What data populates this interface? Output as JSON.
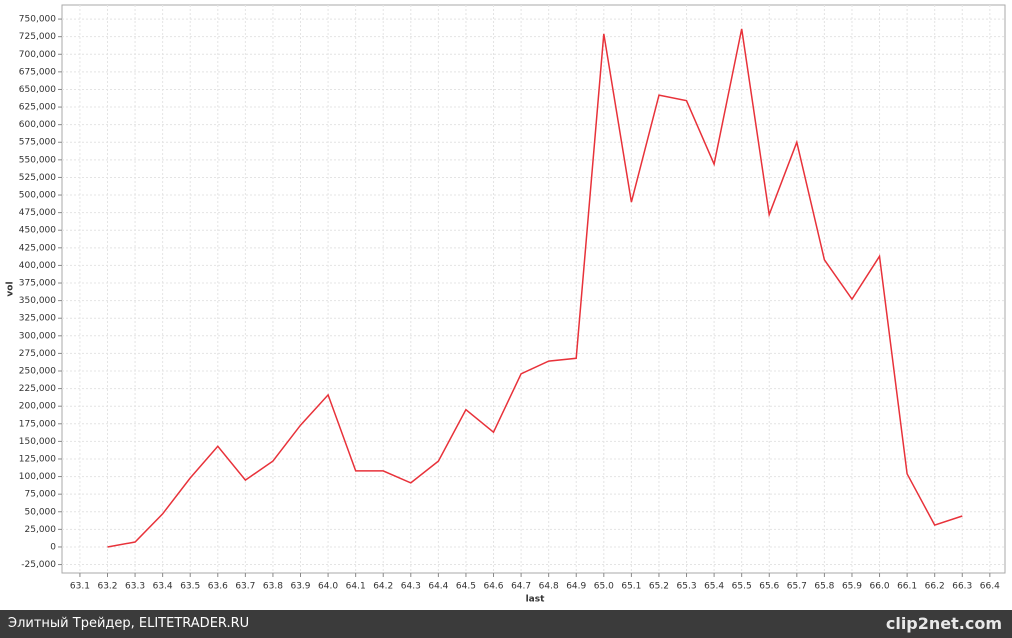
{
  "chart_data": {
    "type": "line",
    "x_label": "last",
    "y_label": "vol",
    "color": "#e8323a",
    "grid": true,
    "x": [
      63.2,
      63.3,
      63.4,
      63.5,
      63.6,
      63.7,
      63.8,
      63.9,
      64.0,
      64.1,
      64.2,
      64.3,
      64.4,
      64.5,
      64.6,
      64.7,
      64.8,
      64.9,
      65.0,
      65.1,
      65.2,
      65.3,
      65.4,
      65.5,
      65.6,
      65.7,
      65.8,
      65.9,
      66.0,
      66.1,
      66.2,
      66.3
    ],
    "values": [
      0,
      7000,
      47000,
      98000,
      143000,
      95000,
      122000,
      173000,
      216000,
      108000,
      108000,
      91000,
      122000,
      195000,
      163000,
      246000,
      264000,
      268000,
      729000,
      490000,
      642000,
      634000,
      544000,
      736000,
      472000,
      575000,
      408000,
      352000,
      413000,
      104000,
      31000,
      44000
    ],
    "xlim": [
      63.035,
      66.455
    ],
    "ylim": [
      -37000,
      770000
    ],
    "xticks": [
      63.1,
      63.2,
      63.3,
      63.4,
      63.5,
      63.6,
      63.7,
      63.8,
      63.9,
      {
        "value": 64,
        "label": "64.0"
      },
      64.1,
      64.2,
      64.3,
      64.4,
      64.5,
      64.6,
      64.7,
      64.8,
      64.9,
      {
        "value": 65,
        "label": "65.0"
      },
      65.1,
      65.2,
      65.3,
      65.4,
      65.5,
      65.6,
      65.7,
      65.8,
      65.9,
      {
        "value": 66,
        "label": "66.0"
      },
      66.1,
      66.2,
      66.3,
      66.4
    ],
    "yticks": [
      {
        "value": -25000,
        "label": "-25,000"
      },
      0,
      {
        "value": 25000,
        "label": "25,000"
      },
      {
        "value": 50000,
        "label": "50,000"
      },
      {
        "value": 75000,
        "label": "75,000"
      },
      {
        "value": 100000,
        "label": "100,000"
      },
      {
        "value": 125000,
        "label": "125,000"
      },
      {
        "value": 150000,
        "label": "150,000"
      },
      {
        "value": 175000,
        "label": "175,000"
      },
      {
        "value": 200000,
        "label": "200,000"
      },
      {
        "value": 225000,
        "label": "225,000"
      },
      {
        "value": 250000,
        "label": "250,000"
      },
      {
        "value": 275000,
        "label": "275,000"
      },
      {
        "value": 300000,
        "label": "300,000"
      },
      {
        "value": 325000,
        "label": "325,000"
      },
      {
        "value": 350000,
        "label": "350,000"
      },
      {
        "value": 375000,
        "label": "375,000"
      },
      {
        "value": 400000,
        "label": "400,000"
      },
      {
        "value": 425000,
        "label": "425,000"
      },
      {
        "value": 450000,
        "label": "450,000"
      },
      {
        "value": 475000,
        "label": "475,000"
      },
      {
        "value": 500000,
        "label": "500,000"
      },
      {
        "value": 525000,
        "label": "525,000"
      },
      {
        "value": 550000,
        "label": "550,000"
      },
      {
        "value": 575000,
        "label": "575,000"
      },
      {
        "value": 600000,
        "label": "600,000"
      },
      {
        "value": 625000,
        "label": "625,000"
      },
      {
        "value": 650000,
        "label": "650,000"
      },
      {
        "value": 675000,
        "label": "675,000"
      },
      {
        "value": 700000,
        "label": "700,000"
      },
      {
        "value": 725000,
        "label": "725,000"
      },
      {
        "value": 750000,
        "label": "750,000"
      }
    ]
  },
  "footer": {
    "caption": "Элитный Трейдер, ELITETRADER.RU",
    "logo": "clip2net.com"
  }
}
